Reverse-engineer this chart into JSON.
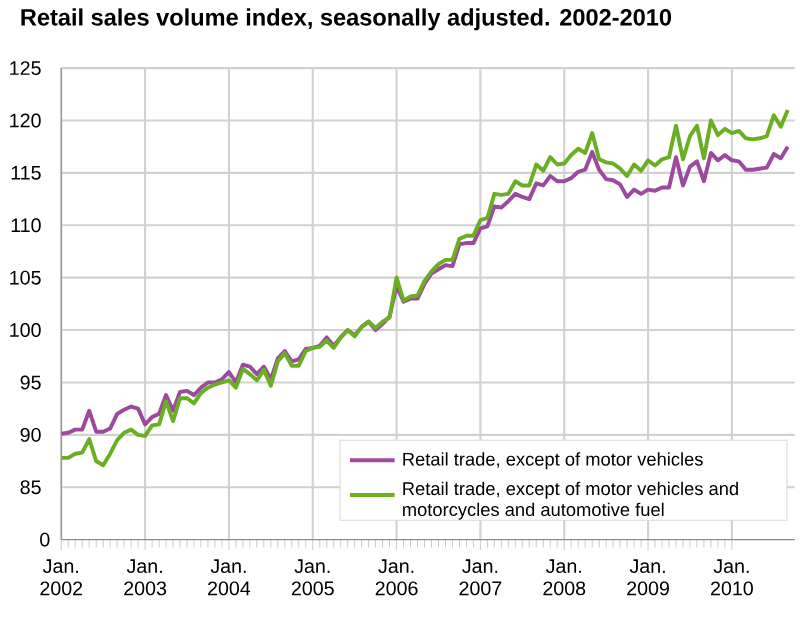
{
  "chart_data": {
    "type": "line",
    "title": "Retail sales volume index, seasonally adjusted. 2002-2010",
    "x": [
      "2002-01",
      "2002-02",
      "2002-03",
      "2002-04",
      "2002-05",
      "2002-06",
      "2002-07",
      "2002-08",
      "2002-09",
      "2002-10",
      "2002-11",
      "2002-12",
      "2003-01",
      "2003-02",
      "2003-03",
      "2003-04",
      "2003-05",
      "2003-06",
      "2003-07",
      "2003-08",
      "2003-09",
      "2003-10",
      "2003-11",
      "2003-12",
      "2004-01",
      "2004-02",
      "2004-03",
      "2004-04",
      "2004-05",
      "2004-06",
      "2004-07",
      "2004-08",
      "2004-09",
      "2004-10",
      "2004-11",
      "2004-12",
      "2005-01",
      "2005-02",
      "2005-03",
      "2005-04",
      "2005-05",
      "2005-06",
      "2005-07",
      "2005-08",
      "2005-09",
      "2005-10",
      "2005-11",
      "2005-12",
      "2006-01",
      "2006-02",
      "2006-03",
      "2006-04",
      "2006-05",
      "2006-06",
      "2006-07",
      "2006-08",
      "2006-09",
      "2006-10",
      "2006-11",
      "2006-12",
      "2007-01",
      "2007-02",
      "2007-03",
      "2007-04",
      "2007-05",
      "2007-06",
      "2007-07",
      "2007-08",
      "2007-09",
      "2007-10",
      "2007-11",
      "2007-12",
      "2008-01",
      "2008-02",
      "2008-03",
      "2008-04",
      "2008-05",
      "2008-06",
      "2008-07",
      "2008-08",
      "2008-09",
      "2008-10",
      "2008-11",
      "2008-12",
      "2009-01",
      "2009-02",
      "2009-03",
      "2009-04",
      "2009-05",
      "2009-06",
      "2009-07",
      "2009-08",
      "2009-09",
      "2009-10",
      "2009-11",
      "2009-12",
      "2010-01",
      "2010-02",
      "2010-03",
      "2010-04",
      "2010-05",
      "2010-06",
      "2010-07",
      "2010-08",
      "2010-09"
    ],
    "series": [
      {
        "name": "Retail trade, except of motor vehicles",
        "color": "#9b4a9e",
        "values": [
          90.1,
          90.2,
          90.5,
          90.5,
          92.3,
          90.3,
          90.3,
          90.6,
          92,
          92.4,
          92.7,
          92.5,
          91,
          91.7,
          92,
          93.8,
          92.3,
          94.1,
          94.2,
          93.8,
          94.5,
          95,
          95,
          95.3,
          96,
          95,
          96.7,
          96.5,
          95.8,
          96.5,
          95.3,
          97.3,
          98,
          97,
          97.2,
          98.2,
          98.3,
          98.5,
          99.3,
          98.5,
          99.3,
          100,
          99.5,
          100.3,
          100.8,
          100,
          100.6,
          101.3,
          104.2,
          102.7,
          103,
          103,
          104.4,
          105.4,
          105.8,
          106.2,
          106.1,
          108.2,
          108.3,
          108.3,
          109.7,
          109.9,
          111.8,
          111.7,
          112.3,
          113,
          112.7,
          112.5,
          114,
          113.8,
          114.7,
          114.2,
          114.2,
          114.5,
          115.1,
          115.3,
          117,
          115.3,
          114.4,
          114.3,
          113.9,
          112.7,
          113.4,
          113,
          113.4,
          113.3,
          113.6,
          113.6,
          116.5,
          113.8,
          115.6,
          116.1,
          114.2,
          116.9,
          116.2,
          116.7,
          116.2,
          116.1,
          115.3,
          115.3,
          115.4,
          115.5,
          116.8,
          116.4,
          117.5
        ]
      },
      {
        "name": "Retail trade, except of motor vehicles and motorcycles and automotive fuel",
        "color": "#6aaf23",
        "values": [
          87.8,
          87.8,
          88.2,
          88.3,
          89.6,
          87.5,
          87.1,
          88.2,
          89.5,
          90.2,
          90.5,
          90,
          89.9,
          90.9,
          91,
          93.2,
          91.3,
          93.5,
          93.5,
          93,
          94,
          94.5,
          94.8,
          95,
          95.2,
          94.5,
          96.3,
          95.8,
          95.2,
          96.2,
          94.7,
          97,
          97.8,
          96.6,
          96.6,
          98,
          98.3,
          98.4,
          99,
          98.3,
          99.3,
          100,
          99.4,
          100.3,
          100.8,
          100.2,
          100.8,
          101.2,
          105,
          102.8,
          103.2,
          103.3,
          104.7,
          105.6,
          106.3,
          106.7,
          106.7,
          108.7,
          109,
          109,
          110.5,
          110.7,
          113,
          112.9,
          113,
          114.2,
          113.8,
          113.8,
          115.8,
          115.2,
          116.5,
          115.8,
          115.9,
          116.7,
          117.3,
          116.9,
          118.8,
          116.3,
          116,
          115.9,
          115.4,
          114.7,
          115.8,
          115.2,
          116.2,
          115.7,
          116.3,
          116.5,
          119.5,
          116.3,
          118.5,
          119.5,
          116.4,
          120,
          118.6,
          119.2,
          118.8,
          119,
          118.3,
          118.2,
          118.3,
          118.5,
          120.5,
          119.4,
          121
        ]
      }
    ],
    "xlim": [
      "2002-01",
      "2010-10"
    ],
    "xticks": [
      {
        "value": "2002-01",
        "label": "Jan. 2002"
      },
      {
        "value": "2003-01",
        "label": "Jan. 2003"
      },
      {
        "value": "2004-01",
        "label": "Jan. 2004"
      },
      {
        "value": "2005-01",
        "label": "Jan. 2005"
      },
      {
        "value": "2006-01",
        "label": "Jan. 2006"
      },
      {
        "value": "2007-01",
        "label": "Jan. 2007"
      },
      {
        "value": "2008-01",
        "label": "Jan. 2008"
      },
      {
        "value": "2009-01",
        "label": "Jan. 2009"
      },
      {
        "value": "2010-01",
        "label": "Jan. 2010"
      }
    ],
    "ylim": [
      80,
      125
    ],
    "yticks": [
      85,
      90,
      95,
      100,
      105,
      110,
      115,
      120,
      125
    ],
    "annotations": [
      "0"
    ],
    "grid": true,
    "legend": "bottom right",
    "marker": "none",
    "line_style": "solid"
  }
}
